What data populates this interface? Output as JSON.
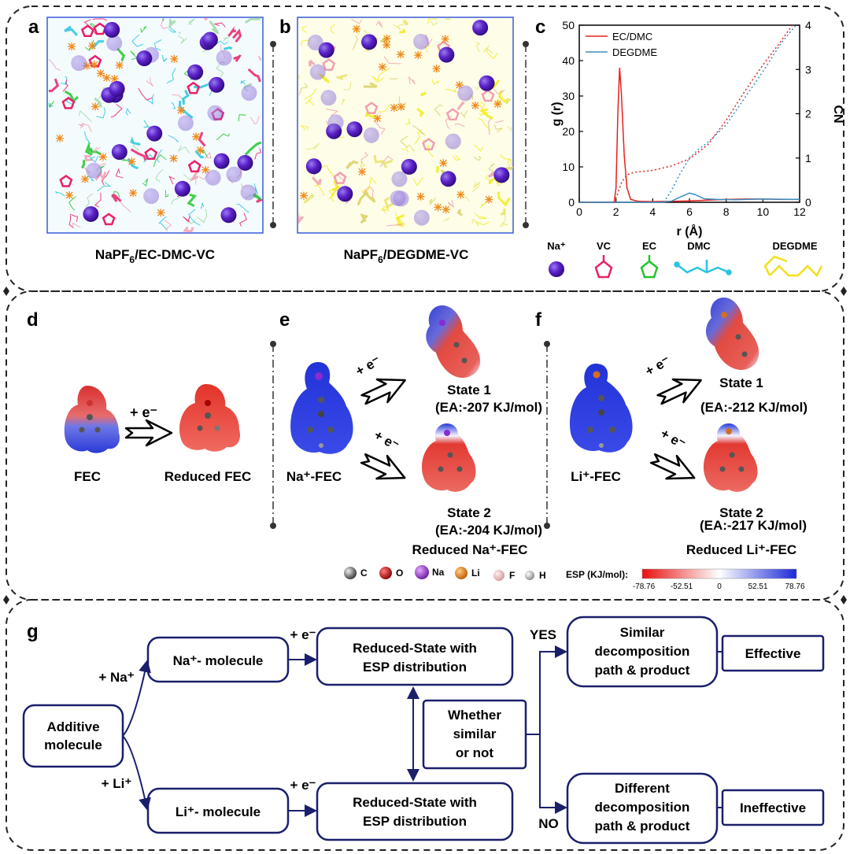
{
  "panel_letters": {
    "a": "a",
    "b": "b",
    "c": "c",
    "d": "d",
    "e": "e",
    "f": "f",
    "g": "g"
  },
  "colors": {
    "na": "#5b21c9",
    "vc": "#e8206b",
    "ec": "#22c52a",
    "dmc": "#29c5e0",
    "degdme": "#f2ec1a",
    "pf6": "#f08a1a",
    "ec_dmc_line": "#e8201e",
    "degdme_line": "#3a8fc0",
    "flow_box": "#1a1f6b"
  },
  "panel_a": {
    "caption_pre": "NaPF",
    "caption_sub": "6",
    "caption_post": "/EC-DMC-VC"
  },
  "panel_b": {
    "caption_pre": "NaPF",
    "caption_sub": "6",
    "caption_post": "/DEGDME-VC"
  },
  "chart_data": {
    "type": "line",
    "xlabel": "r (Å)",
    "ylabel": "g (r)",
    "y2label": "CN",
    "xlim": [
      0,
      12
    ],
    "ylim": [
      0,
      50
    ],
    "y2lim": [
      0,
      4
    ],
    "xticks": [
      "0",
      "2",
      "4",
      "6",
      "8",
      "10",
      "12"
    ],
    "yticks": [
      "0",
      "10",
      "20",
      "30",
      "40",
      "50"
    ],
    "y2ticks": [
      "0",
      "1",
      "2",
      "3",
      "4"
    ],
    "legend": [
      "EC/DMC",
      "DEGDME"
    ],
    "series": [
      {
        "name": "EC/DMC g(r)",
        "axis": "left",
        "style": "solid",
        "color": "#e8201e",
        "x": [
          0,
          1.9,
          2.0,
          2.1,
          2.2,
          2.3,
          2.45,
          2.6,
          2.8,
          3.2,
          4,
          5,
          6,
          7,
          8,
          9,
          10,
          11,
          12
        ],
        "y": [
          0,
          0,
          4,
          25,
          38,
          30,
          13,
          4,
          0.8,
          0.3,
          0.2,
          0.3,
          0.4,
          0.6,
          0.8,
          0.9,
          0.9,
          0.8,
          0.8
        ]
      },
      {
        "name": "DEGDME g(r)",
        "axis": "left",
        "style": "solid",
        "color": "#3a8fc0",
        "x": [
          0,
          4.5,
          5.0,
          5.5,
          6.0,
          6.3,
          6.8,
          7.5,
          8.5,
          10,
          12
        ],
        "y": [
          0,
          0,
          0.3,
          1.5,
          2.6,
          2.2,
          1.0,
          0.8,
          0.7,
          0.9,
          0.8
        ]
      },
      {
        "name": "EC/DMC CN",
        "axis": "right",
        "style": "dotted",
        "color": "#e8201e",
        "x": [
          1.9,
          2.1,
          2.3,
          2.6,
          3.0,
          4,
          5,
          6,
          7,
          8,
          9,
          10,
          11,
          11.6
        ],
        "y": [
          0,
          0.2,
          0.45,
          0.62,
          0.68,
          0.72,
          0.82,
          0.98,
          1.3,
          1.85,
          2.5,
          3.1,
          3.65,
          4.0
        ]
      },
      {
        "name": "DEGDME CN",
        "axis": "right",
        "style": "dotted",
        "color": "#3a8fc0",
        "x": [
          4.6,
          5.0,
          5.5,
          6.0,
          6.5,
          7,
          8,
          9,
          10,
          11,
          11.8
        ],
        "y": [
          0,
          0.25,
          0.65,
          1.0,
          1.2,
          1.35,
          1.75,
          2.35,
          2.95,
          3.6,
          4.0
        ]
      }
    ]
  },
  "legend_abc": {
    "na": "Na⁺",
    "vc": "VC",
    "ec": "EC",
    "dmc": "DMC",
    "degdme": "DEGDME"
  },
  "panel_d": {
    "plus_e": "+ e⁻",
    "fec": "FEC",
    "reduced": "Reduced FEC"
  },
  "panel_e": {
    "plus_e1": "+ e⁻",
    "plus_e2": "+ e⁻",
    "molecule": "Na⁺-FEC",
    "state1": "State 1",
    "ea1": "(EA:-207 KJ/mol)",
    "state2": "State 2",
    "ea2": "(EA:-204 KJ/mol)",
    "reduced": "Reduced Na⁺-FEC"
  },
  "panel_f": {
    "plus_e1": "+ e⁻",
    "plus_e2": "+ e⁻",
    "molecule": "Li⁺-FEC",
    "state1": "State 1",
    "ea1": "(EA:-212 KJ/mol)",
    "state2": "State 2",
    "ea2": "(EA:-217 KJ/mol)",
    "reduced": "Reduced Li⁺-FEC"
  },
  "atoms": {
    "c": "C",
    "o": "O",
    "na": "Na",
    "li": "Li",
    "f": "F",
    "h": "H"
  },
  "esp": {
    "title": "ESP (KJ/mol):",
    "ticks": [
      "-78.76",
      "-52.51",
      "0",
      "52.51",
      "78.76"
    ]
  },
  "panel_g": {
    "additive": [
      "Additive",
      "molecule"
    ],
    "plus_na": "+ Na⁺",
    "plus_li": "+ Li⁺",
    "na_mol": "Na⁺- molecule",
    "li_mol": "Li⁺- molecule",
    "plus_e_top": "+ e⁻",
    "plus_e_bot": "+ e⁻",
    "reduced_top": [
      "Reduced-State with",
      "ESP distribution"
    ],
    "reduced_bot": [
      "Reduced-State with",
      "ESP distribution"
    ],
    "whether": [
      "Whether",
      "similar",
      "or not"
    ],
    "yes": "YES",
    "no": "NO",
    "similar": [
      "Similar",
      "decomposition",
      "path & product"
    ],
    "different": [
      "Different",
      "decomposition",
      "path & product"
    ],
    "effective": "Effective",
    "ineffective": "Ineffective"
  }
}
